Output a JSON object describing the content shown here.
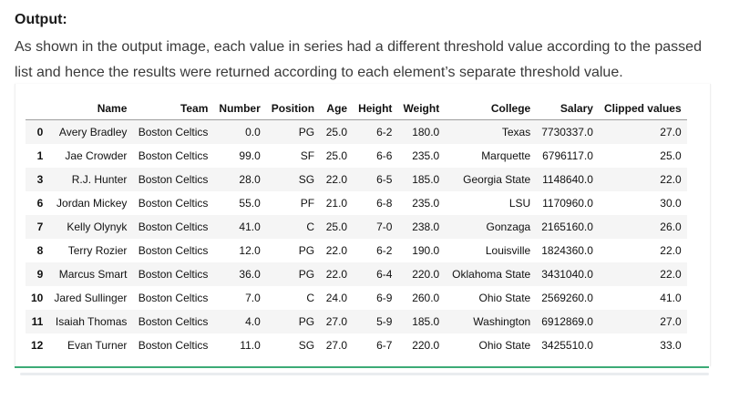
{
  "article": {
    "heading": "Output:",
    "paragraph": "As shown in the output image, each value in series had a different threshold value according to the passed list and hence the results were returned according to each element’s separate threshold value."
  },
  "table": {
    "columns": [
      "",
      "Name",
      "Team",
      "Number",
      "Position",
      "Age",
      "Height",
      "Weight",
      "College",
      "Salary",
      "Clipped values"
    ],
    "rows": [
      [
        "0",
        "Avery Bradley",
        "Boston Celtics",
        "0.0",
        "PG",
        "25.0",
        "6-2",
        "180.0",
        "Texas",
        "7730337.0",
        "27.0"
      ],
      [
        "1",
        "Jae Crowder",
        "Boston Celtics",
        "99.0",
        "SF",
        "25.0",
        "6-6",
        "235.0",
        "Marquette",
        "6796117.0",
        "25.0"
      ],
      [
        "3",
        "R.J. Hunter",
        "Boston Celtics",
        "28.0",
        "SG",
        "22.0",
        "6-5",
        "185.0",
        "Georgia State",
        "1148640.0",
        "22.0"
      ],
      [
        "6",
        "Jordan Mickey",
        "Boston Celtics",
        "55.0",
        "PF",
        "21.0",
        "6-8",
        "235.0",
        "LSU",
        "1170960.0",
        "30.0"
      ],
      [
        "7",
        "Kelly Olynyk",
        "Boston Celtics",
        "41.0",
        "C",
        "25.0",
        "7-0",
        "238.0",
        "Gonzaga",
        "2165160.0",
        "26.0"
      ],
      [
        "8",
        "Terry Rozier",
        "Boston Celtics",
        "12.0",
        "PG",
        "22.0",
        "6-2",
        "190.0",
        "Louisville",
        "1824360.0",
        "22.0"
      ],
      [
        "9",
        "Marcus Smart",
        "Boston Celtics",
        "36.0",
        "PG",
        "22.0",
        "6-4",
        "220.0",
        "Oklahoma State",
        "3431040.0",
        "22.0"
      ],
      [
        "10",
        "Jared Sullinger",
        "Boston Celtics",
        "7.0",
        "C",
        "24.0",
        "6-9",
        "260.0",
        "Ohio State",
        "2569260.0",
        "41.0"
      ],
      [
        "11",
        "Isaiah Thomas",
        "Boston Celtics",
        "4.0",
        "PG",
        "27.0",
        "5-9",
        "185.0",
        "Washington",
        "6912869.0",
        "27.0"
      ],
      [
        "12",
        "Evan Turner",
        "Boston Celtics",
        "11.0",
        "SG",
        "27.0",
        "6-7",
        "220.0",
        "Ohio State",
        "3425510.0",
        "33.0"
      ]
    ]
  },
  "colors": {
    "accent": "#3cab76",
    "stripe": "#f5f5f5"
  }
}
